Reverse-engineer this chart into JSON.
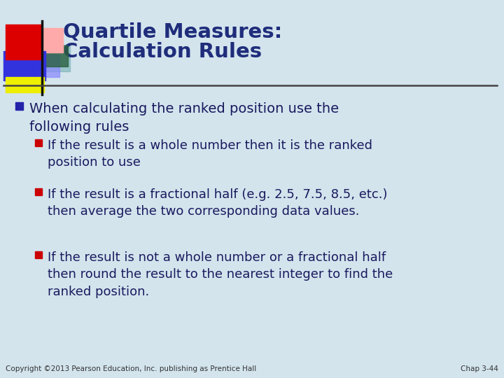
{
  "title_line1": "Quartile Measures:",
  "title_line2": "Calculation Rules",
  "title_color": "#1F2D7B",
  "bg_color": "#D3E4ED",
  "footer_left": "Copyright ©2013 Pearson Education, Inc. publishing as Prentice Hall",
  "footer_right": "Chap 3-44",
  "text_color": "#1A1A5E",
  "bullet_dark_blue": "#2222AA",
  "bullet_red": "#CC0000",
  "square_red": "#DD0000",
  "square_pink": "#FFAAAA",
  "square_blue": "#3333DD",
  "square_blue_light": "#8888FF",
  "square_green": "#2A6040",
  "square_teal": "#66AAAA",
  "square_yellow": "#EEEE00",
  "divider_color": "#555555",
  "footer_color": "#333333"
}
